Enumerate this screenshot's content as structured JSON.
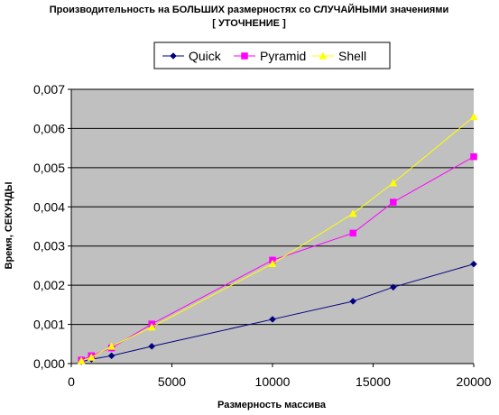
{
  "chart_data": {
    "type": "line",
    "title": "Производительность на БОЛЬШИХ размерностях со СЛУЧАЙНЫМИ значениями",
    "subtitle": "[ УТОЧНЕНИЕ ]",
    "xlabel": "Размерность массива",
    "ylabel": "Время, СЕКУНДЫ",
    "xlim": [
      0,
      20000
    ],
    "ylim": [
      0,
      0.007
    ],
    "x_ticks": [
      "0",
      "5000",
      "10000",
      "15000",
      "20000"
    ],
    "y_ticks": [
      "0,000",
      "0,001",
      "0,002",
      "0,003",
      "0,004",
      "0,005",
      "0,006",
      "0,007"
    ],
    "grid": "horizontal",
    "legend_position": "top",
    "plot_background": "#c0c0c0",
    "x": [
      500,
      1000,
      2000,
      4000,
      10000,
      14000,
      16000,
      20000
    ],
    "series": [
      {
        "name": "Quick",
        "color": "#000080",
        "marker": "diamond",
        "values": [
          5e-05,
          0.00011,
          0.0002,
          0.00044,
          0.00113,
          0.00159,
          0.00195,
          0.00254
        ]
      },
      {
        "name": "Pyramid",
        "color": "#ff00ff",
        "marker": "square",
        "values": [
          9e-05,
          0.0002,
          0.0004,
          0.00101,
          0.00264,
          0.00333,
          0.00412,
          0.00528
        ]
      },
      {
        "name": "Shell",
        "color": "#ffff00",
        "marker": "triangle",
        "values": [
          7e-05,
          0.00016,
          0.00044,
          0.00093,
          0.00255,
          0.00383,
          0.00461,
          0.0063
        ]
      }
    ]
  }
}
